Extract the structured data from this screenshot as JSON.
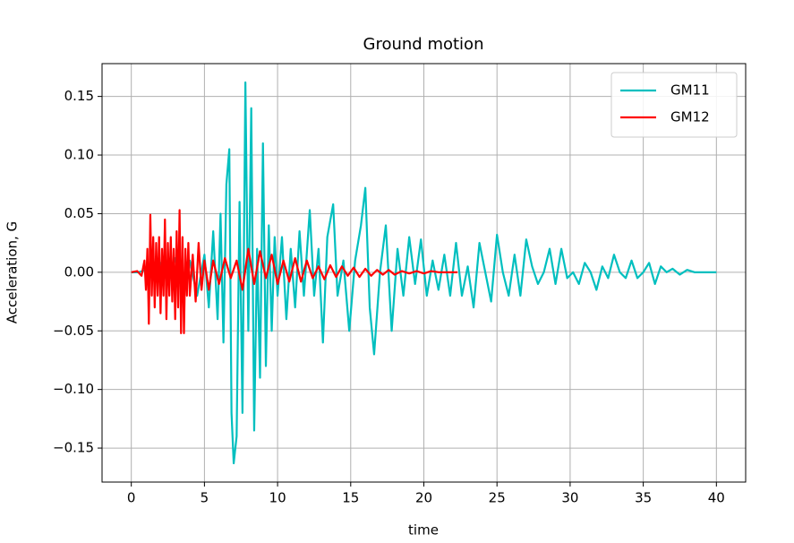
{
  "chart_data": {
    "type": "line",
    "title": "Ground motion",
    "xlabel": "time",
    "ylabel": "Acceleration, G",
    "xlim": [
      -2,
      42
    ],
    "xticks": [
      0,
      5,
      10,
      15,
      20,
      25,
      30,
      35,
      40
    ],
    "ylim": [
      -0.179,
      0.178
    ],
    "yticks": [
      {
        "value": -0.15,
        "label": "−0.15"
      },
      {
        "value": -0.1,
        "label": "−0.10"
      },
      {
        "value": -0.05,
        "label": "−0.05"
      },
      {
        "value": 0,
        "label": "0.00"
      },
      {
        "value": 0.05,
        "label": "0.05"
      },
      {
        "value": 0.1,
        "label": "0.10"
      },
      {
        "value": 0.15,
        "label": "0.15"
      }
    ],
    "grid": true,
    "legend": "upper right",
    "series": [
      {
        "name": "GM11",
        "color": "#00bfbf",
        "x": [
          0,
          0.5,
          1,
          1.5,
          2,
          2.5,
          3,
          3.5,
          4,
          4.5,
          5,
          5.3,
          5.6,
          5.9,
          6.1,
          6.3,
          6.5,
          6.7,
          6.85,
          7.0,
          7.2,
          7.4,
          7.6,
          7.8,
          8.0,
          8.2,
          8.4,
          8.6,
          8.8,
          9.0,
          9.2,
          9.4,
          9.6,
          9.8,
          10.0,
          10.3,
          10.6,
          10.9,
          11.2,
          11.5,
          11.8,
          12.2,
          12.5,
          12.8,
          13.1,
          13.4,
          13.8,
          14.1,
          14.5,
          14.9,
          15.3,
          15.7,
          16.0,
          16.3,
          16.6,
          17.0,
          17.4,
          17.8,
          18.2,
          18.6,
          19.0,
          19.4,
          19.8,
          20.2,
          20.6,
          21.0,
          21.4,
          21.8,
          22.2,
          22.6,
          23.0,
          23.4,
          23.8,
          24.2,
          24.6,
          25.0,
          25.4,
          25.8,
          26.2,
          26.6,
          27.0,
          27.4,
          27.8,
          28.2,
          28.6,
          29.0,
          29.4,
          29.8,
          30.2,
          30.6,
          31.0,
          31.4,
          31.8,
          32.2,
          32.6,
          33.0,
          33.4,
          33.8,
          34.2,
          34.6,
          35.0,
          35.4,
          35.8,
          36.2,
          36.6,
          37.0,
          37.5,
          38.0,
          38.5,
          39.0,
          40.0
        ],
        "values": [
          0,
          0,
          0.002,
          -0.005,
          0.008,
          -0.01,
          0.012,
          -0.015,
          0.01,
          -0.02,
          0.015,
          -0.03,
          0.035,
          -0.04,
          0.05,
          -0.06,
          0.075,
          0.105,
          -0.12,
          -0.163,
          -0.14,
          0.06,
          -0.12,
          0.162,
          -0.05,
          0.14,
          -0.135,
          0.02,
          -0.09,
          0.11,
          -0.08,
          0.04,
          -0.05,
          0.03,
          -0.02,
          0.03,
          -0.04,
          0.02,
          -0.03,
          0.035,
          -0.02,
          0.053,
          -0.02,
          0.02,
          -0.06,
          0.03,
          0.058,
          -0.02,
          0.01,
          -0.05,
          0.01,
          0.04,
          0.072,
          -0.03,
          -0.07,
          0,
          0.04,
          -0.05,
          0.02,
          -0.02,
          0.03,
          -0.01,
          0.028,
          -0.02,
          0.01,
          -0.015,
          0.015,
          -0.02,
          0.025,
          -0.02,
          0.005,
          -0.03,
          0.025,
          0,
          -0.025,
          0.032,
          0,
          -0.02,
          0.015,
          -0.02,
          0.028,
          0.005,
          -0.01,
          0,
          0.02,
          -0.01,
          0.02,
          -0.005,
          0,
          -0.01,
          0.008,
          0,
          -0.015,
          0.005,
          -0.005,
          0.015,
          0,
          -0.005,
          0.01,
          -0.005,
          0,
          0.008,
          -0.01,
          0.005,
          0,
          0.003,
          -0.002,
          0.002,
          0,
          0,
          0
        ]
      },
      {
        "name": "GM12",
        "color": "#ff0000",
        "x": [
          0,
          0.4,
          0.7,
          0.9,
          1.0,
          1.1,
          1.2,
          1.3,
          1.4,
          1.5,
          1.6,
          1.7,
          1.8,
          1.9,
          2.0,
          2.1,
          2.2,
          2.3,
          2.4,
          2.5,
          2.6,
          2.7,
          2.8,
          2.9,
          3.0,
          3.1,
          3.2,
          3.3,
          3.4,
          3.5,
          3.6,
          3.7,
          3.8,
          3.9,
          4.0,
          4.2,
          4.4,
          4.6,
          4.8,
          5.0,
          5.3,
          5.6,
          6.0,
          6.4,
          6.8,
          7.2,
          7.6,
          8.0,
          8.4,
          8.8,
          9.2,
          9.6,
          10.0,
          10.4,
          10.8,
          11.2,
          11.6,
          12.0,
          12.4,
          12.8,
          13.2,
          13.6,
          14.0,
          14.4,
          14.8,
          15.2,
          15.6,
          16.0,
          16.4,
          16.8,
          17.2,
          17.6,
          18.0,
          18.5,
          19.0,
          19.5,
          20.0,
          20.5,
          21.0,
          21.5,
          22.3
        ],
        "values": [
          0,
          0.001,
          -0.003,
          0.01,
          -0.015,
          0.02,
          -0.044,
          0.049,
          -0.02,
          0.03,
          -0.03,
          0.025,
          -0.02,
          0.03,
          -0.035,
          0.02,
          -0.02,
          0.045,
          -0.04,
          0.025,
          -0.02,
          0.03,
          -0.025,
          0.02,
          -0.04,
          0.035,
          -0.03,
          0.053,
          -0.052,
          0.03,
          -0.052,
          0.02,
          -0.02,
          0.025,
          -0.02,
          0.015,
          -0.025,
          0.025,
          -0.015,
          0.01,
          -0.015,
          0.01,
          -0.01,
          0.012,
          -0.005,
          0.01,
          -0.015,
          0.02,
          -0.01,
          0.018,
          -0.005,
          0.015,
          -0.01,
          0.01,
          -0.008,
          0.012,
          -0.008,
          0.01,
          -0.005,
          0.005,
          -0.006,
          0.006,
          -0.004,
          0.005,
          -0.003,
          0.004,
          -0.004,
          0.003,
          -0.003,
          0.002,
          -0.002,
          0.002,
          -0.002,
          0.001,
          -0.001,
          0.001,
          -0.001,
          0.001,
          0,
          0,
          0
        ]
      }
    ]
  }
}
